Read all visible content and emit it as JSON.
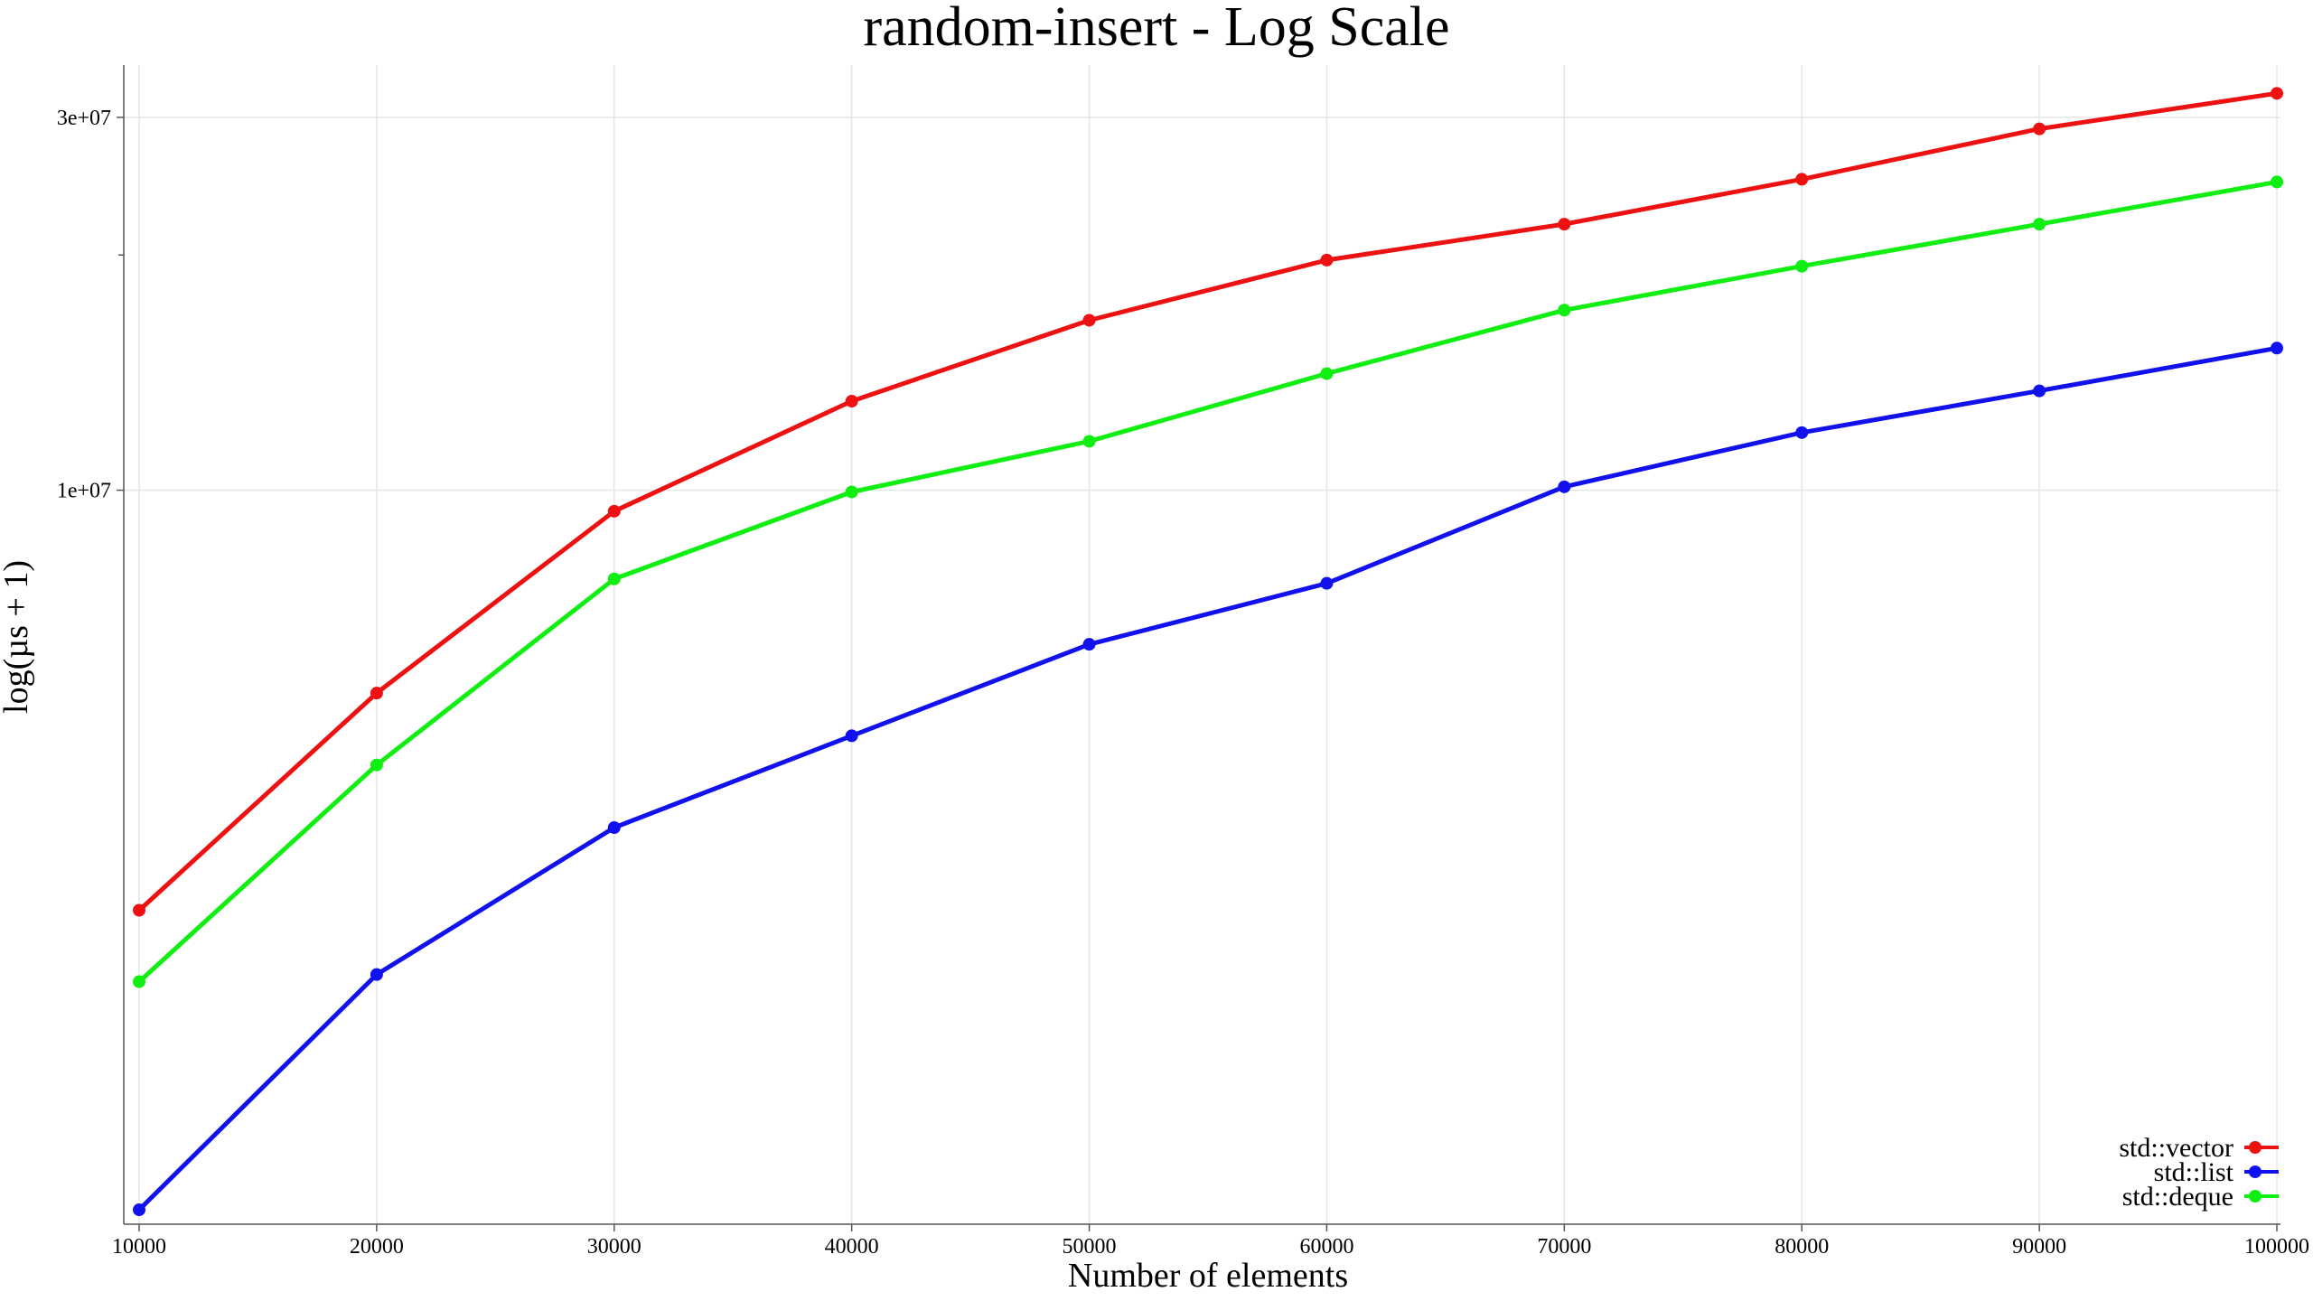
{
  "chart_data": {
    "type": "line",
    "title": "random-insert - Log Scale",
    "xlabel": "Number of elements",
    "ylabel": "log(µs + 1)",
    "y_scale": "log",
    "xlim": [
      10000,
      100000
    ],
    "ylim": [
      1150000,
      35000000
    ],
    "x": [
      10000,
      20000,
      30000,
      40000,
      50000,
      60000,
      70000,
      80000,
      90000,
      100000
    ],
    "x_ticks": [
      10000,
      20000,
      30000,
      40000,
      50000,
      60000,
      70000,
      80000,
      90000,
      100000
    ],
    "x_tick_labels": [
      "10000",
      "20000",
      "30000",
      "40000",
      "50000",
      "60000",
      "70000",
      "80000",
      "90000",
      "100000"
    ],
    "y_ticks": [
      10000000,
      30000000
    ],
    "y_tick_labels": [
      "1e+07",
      "3e+07"
    ],
    "y_minor_ticks": [
      20000000
    ],
    "grid": true,
    "legend_position": "bottom-right",
    "series": [
      {
        "name": "std::vector",
        "color": "#ee1111",
        "values": [
          2900000,
          5500000,
          9400000,
          13000000,
          16500000,
          19700000,
          21900000,
          25000000,
          29000000,
          32200000
        ]
      },
      {
        "name": "std::list",
        "color": "#1111ee",
        "values": [
          1200000,
          2400000,
          3700000,
          4850000,
          6350000,
          7600000,
          10100000,
          11850000,
          13400000,
          15200000
        ]
      },
      {
        "name": "std::deque",
        "color": "#11ee11",
        "values": [
          2350000,
          4450000,
          7700000,
          9950000,
          11550000,
          14100000,
          17000000,
          19350000,
          21900000,
          24800000
        ]
      }
    ]
  }
}
